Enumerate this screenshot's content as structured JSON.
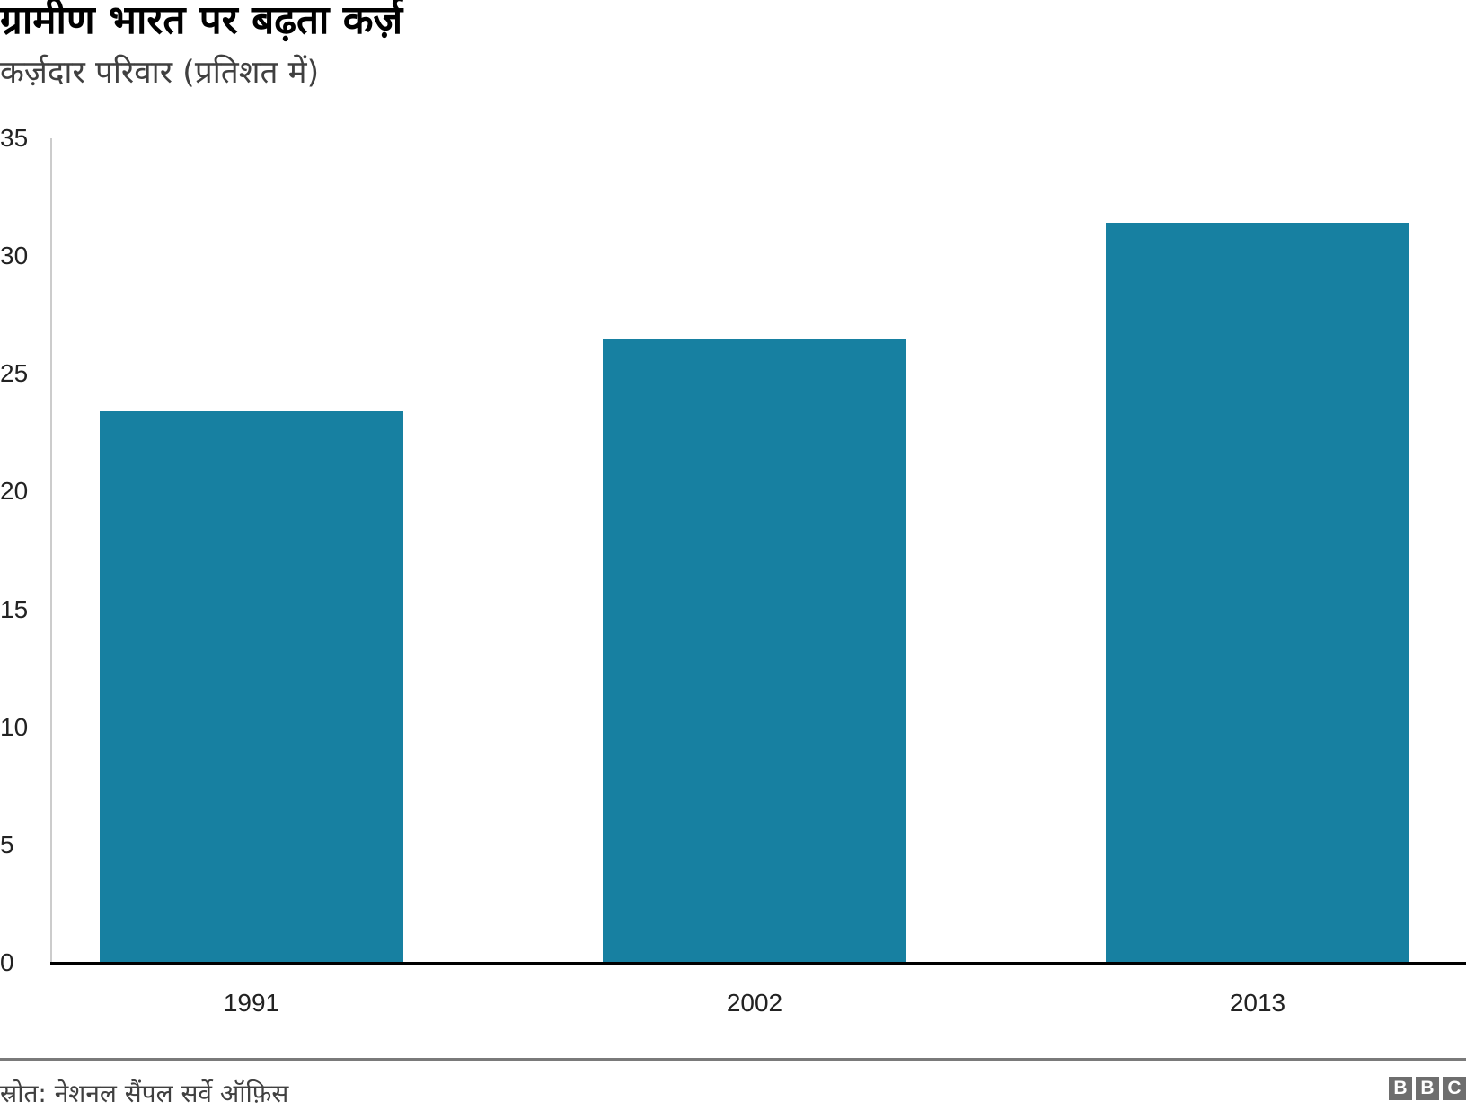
{
  "header": {
    "title": "ग्रामीण भारत पर बढ़ता कर्ज़",
    "subtitle": "कर्ज़दार परिवार (प्रतिशत में)"
  },
  "footer": {
    "source": "स्रोत: नेशनल सैंपल सर्वे ऑफ़िस",
    "logo": [
      "B",
      "B",
      "C"
    ]
  },
  "colors": {
    "bar": "#1780a1",
    "axis": "#000000",
    "footer_rule": "#7a7a7a"
  },
  "chart_data": {
    "type": "bar",
    "title": "ग्रामीण भारत पर बढ़ता कर्ज़",
    "subtitle": "कर्ज़दार परिवार (प्रतिशत में)",
    "xlabel": "",
    "ylabel": "कर्ज़दार परिवार (प्रतिशत में)",
    "categories": [
      "1991",
      "2002",
      "2013"
    ],
    "values": [
      23.4,
      26.5,
      31.4
    ],
    "yticks": [
      "0",
      "5",
      "10",
      "15",
      "20",
      "25",
      "30",
      "35"
    ],
    "ylim": [
      0,
      35
    ],
    "grid": false,
    "legend": null,
    "source": "स्रोत: नेशनल सैंपल सर्वे ऑफ़िस"
  }
}
